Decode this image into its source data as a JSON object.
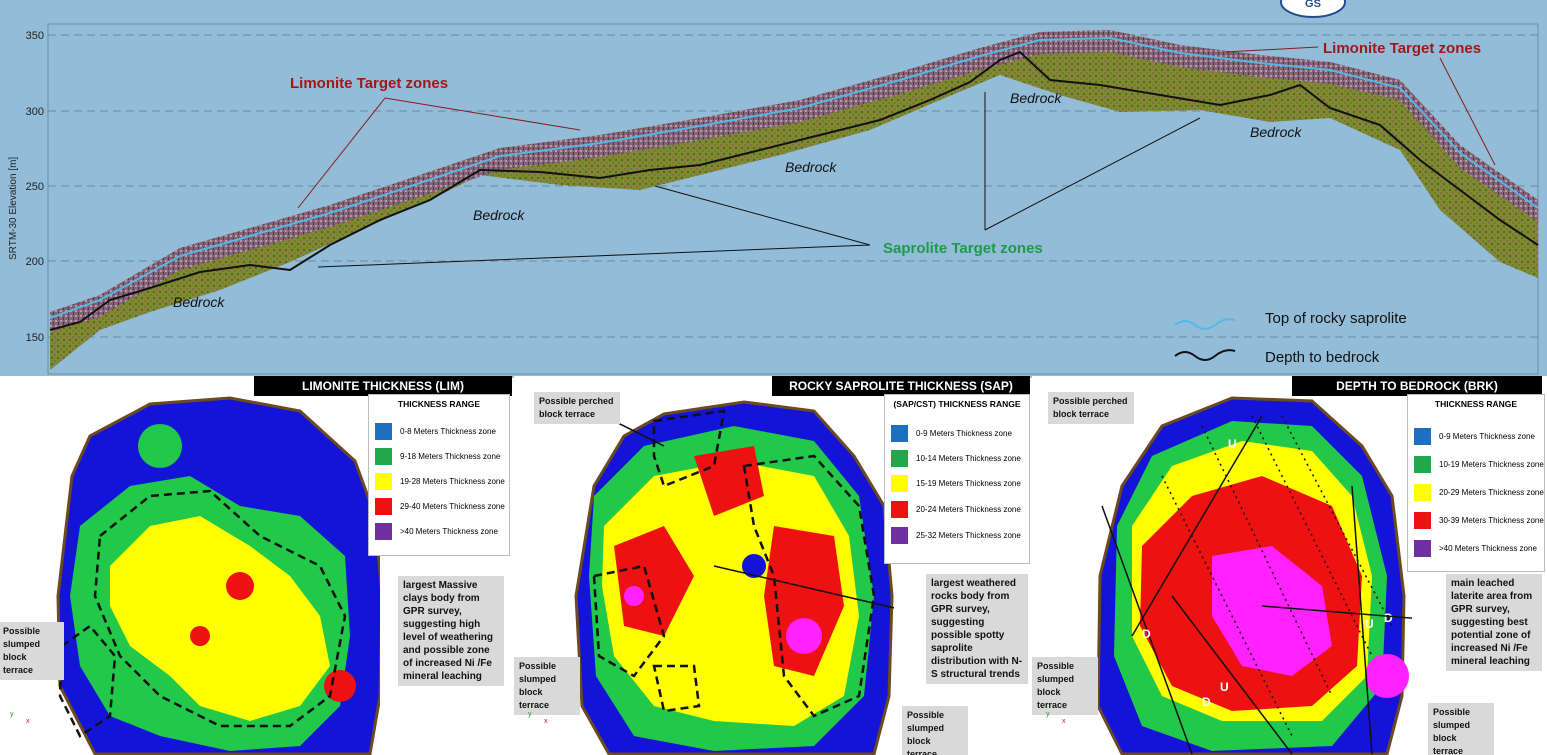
{
  "logo": {
    "text": "GS"
  },
  "profile": {
    "ylabel": "SRTM-30 Elevation [m]",
    "yticks": [
      "350",
      "300",
      "250",
      "200",
      "150"
    ],
    "labels": {
      "limonite_1": "Limonite Target zones",
      "limonite_2": "Limonite Target zones",
      "saprolite": "Saprolite Target zones",
      "bedrock": "Bedrock"
    },
    "legend": {
      "top_saprolite": "Top of rocky saprolite",
      "depth_bedrock": "Depth to bedrock"
    },
    "colors": {
      "sky": "#92bcd8",
      "soil": "#7d8a2e",
      "saprolite_line": "#56b7e6",
      "bedrock_line": "#111111"
    }
  },
  "panels": [
    {
      "title": "LIMONITE THICKNESS (LIM)",
      "legend_title": "THICKNESS RANGE",
      "legend": [
        {
          "label": "0-8 Meters Thickness zone",
          "color": "#1f6fc0"
        },
        {
          "label": "9-18 Meters Thickness zone",
          "color": "#21a84b"
        },
        {
          "label": "19-28 Meters Thickness zone",
          "color": "#ffff00"
        },
        {
          "label": "29-40 Meters Thickness zone",
          "color": "#ee1111"
        },
        {
          "label": ">40  Meters Thickness zone",
          "color": "#7030a0"
        }
      ],
      "notes": {
        "main": "largest Massive clays body from GPR survey, suggesting high level of weathering and possible zone of increased Ni /Fe mineral leaching",
        "slumped": "Possible slumped block terrace"
      }
    },
    {
      "title": "ROCKY SAPROLITE THICKNESS (SAP)",
      "legend_title": "(SAP/CST) THICKNESS RANGE",
      "legend": [
        {
          "label": "0-9 Meters Thickness zone",
          "color": "#1f6fc0"
        },
        {
          "label": "10-14 Meters Thickness zone",
          "color": "#21a84b"
        },
        {
          "label": "15-19 Meters Thickness zone",
          "color": "#ffff00"
        },
        {
          "label": "20-24 Meters Thickness zone",
          "color": "#ee1111"
        },
        {
          "label": "25-32 Meters Thickness zone",
          "color": "#7030a0"
        }
      ],
      "notes": {
        "perched": "Possible perched block terrace",
        "main": "largest weathered rocks body from GPR survey, suggesting possible spotty saprolite distribution with N-S structural trends",
        "slumped_left": "Possible slumped block terrace",
        "slumped_right": "Possible slumped block terrace"
      }
    },
    {
      "title": "DEPTH TO BEDROCK (BRK)",
      "legend_title": "THICKNESS RANGE",
      "legend": [
        {
          "label": "0-9 Meters Thickness zone",
          "color": "#1f6fc0"
        },
        {
          "label": "10-19 Meters Thickness zone",
          "color": "#21a84b"
        },
        {
          "label": "20-29 Meters Thickness zone",
          "color": "#ffff00"
        },
        {
          "label": "30-39 Meters Thickness zone",
          "color": "#ee1111"
        },
        {
          "label": ">40 Meters Thickness zone",
          "color": "#7030a0"
        }
      ],
      "notes": {
        "perched": "Possible perched block terrace",
        "main": "main leached laterite area from GPR survey, suggesting best potential zone of increased Ni /Fe mineral leaching",
        "slumped_left": "Possible slumped block terrace",
        "slumped_right": "Possible slumped block terrace"
      },
      "fault_marks": [
        "U",
        "D",
        "U",
        "D",
        "U",
        "D"
      ]
    }
  ],
  "axis": {
    "x": "x",
    "y": "y"
  }
}
